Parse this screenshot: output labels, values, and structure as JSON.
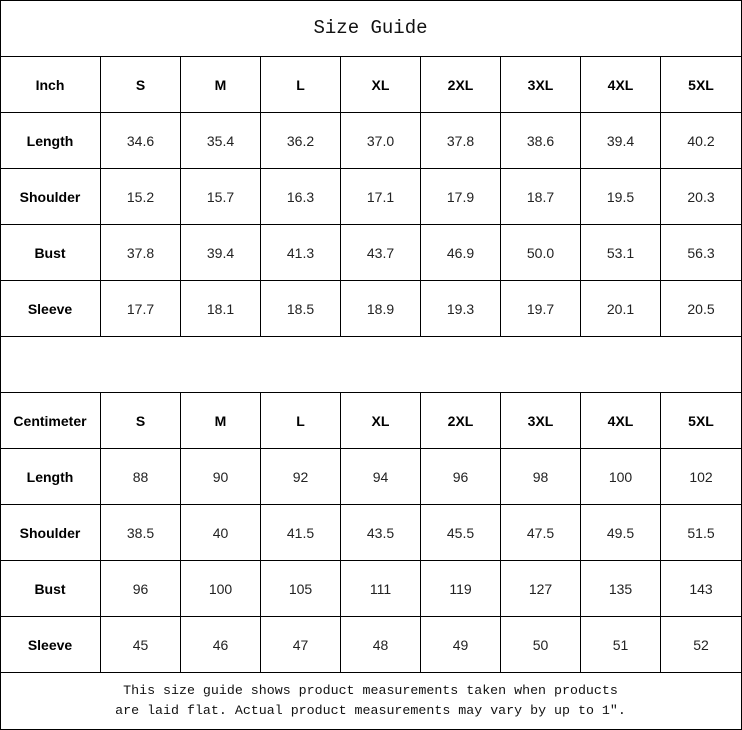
{
  "title": "Size Guide",
  "sizes": [
    "S",
    "M",
    "L",
    "XL",
    "2XL",
    "3XL",
    "4XL",
    "5XL"
  ],
  "inch": {
    "unit_label": "Inch",
    "rows": [
      {
        "label": "Length",
        "values": [
          "34.6",
          "35.4",
          "36.2",
          "37.0",
          "37.8",
          "38.6",
          "39.4",
          "40.2"
        ]
      },
      {
        "label": "Shoulder",
        "values": [
          "15.2",
          "15.7",
          "16.3",
          "17.1",
          "17.9",
          "18.7",
          "19.5",
          "20.3"
        ]
      },
      {
        "label": "Bust",
        "values": [
          "37.8",
          "39.4",
          "41.3",
          "43.7",
          "46.9",
          "50.0",
          "53.1",
          "56.3"
        ]
      },
      {
        "label": "Sleeve",
        "values": [
          "17.7",
          "18.1",
          "18.5",
          "18.9",
          "19.3",
          "19.7",
          "20.1",
          "20.5"
        ]
      }
    ]
  },
  "centimeter": {
    "unit_label": "Centimeter",
    "rows": [
      {
        "label": "Length",
        "values": [
          "88",
          "90",
          "92",
          "94",
          "96",
          "98",
          "100",
          "102"
        ]
      },
      {
        "label": "Shoulder",
        "values": [
          "38.5",
          "40",
          "41.5",
          "43.5",
          "45.5",
          "47.5",
          "49.5",
          "51.5"
        ]
      },
      {
        "label": "Bust",
        "values": [
          "96",
          "100",
          "105",
          "111",
          "119",
          "127",
          "135",
          "143"
        ]
      },
      {
        "label": "Sleeve",
        "values": [
          "45",
          "46",
          "47",
          "48",
          "49",
          "50",
          "51",
          "52"
        ]
      }
    ]
  },
  "footer": {
    "line1": "This size guide shows product measurements taken when products",
    "line2": "are laid flat. Actual product measurements may vary by up to 1″."
  }
}
